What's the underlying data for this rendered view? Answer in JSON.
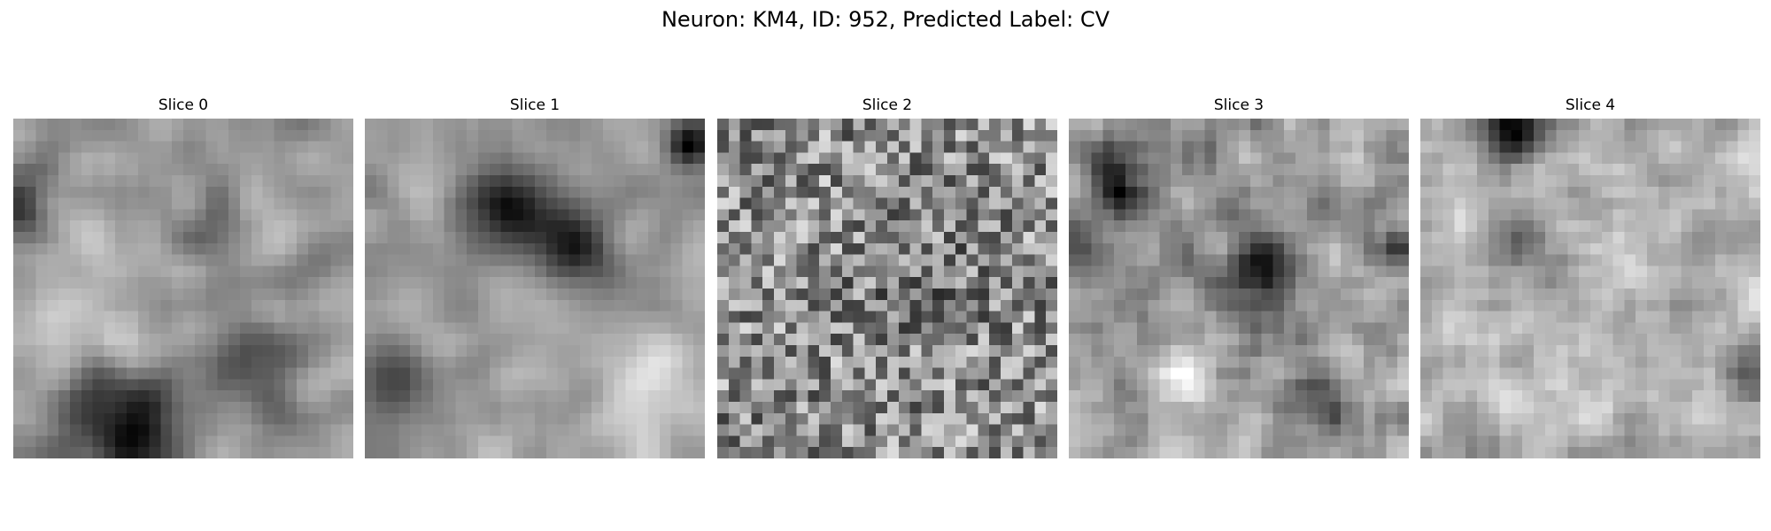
{
  "figure": {
    "title": "Neuron: KM4, ID: 952, Predicted Label: CV"
  },
  "panels": [
    {
      "title": "Slice 0"
    },
    {
      "title": "Slice 1"
    },
    {
      "title": "Slice 2"
    },
    {
      "title": "Slice 3"
    },
    {
      "title": "Slice 4"
    }
  ],
  "colormap": "gray"
}
